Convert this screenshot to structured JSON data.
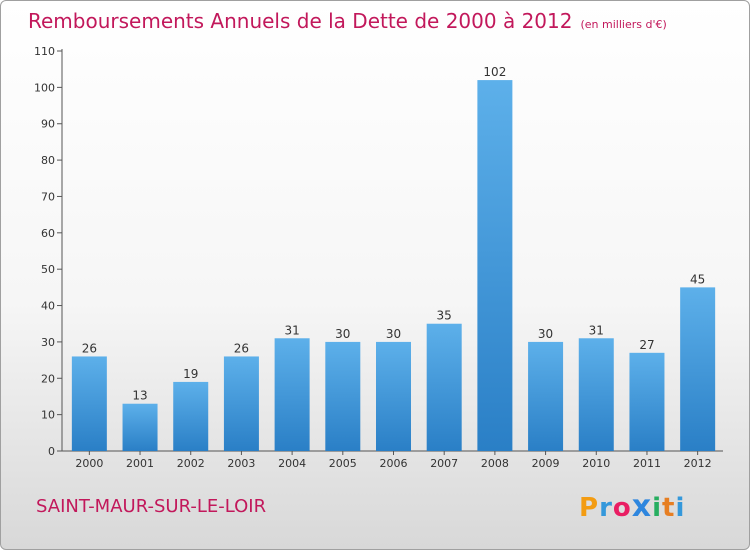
{
  "chart_data": {
    "type": "bar",
    "title": "Remboursements Annuels de la Dette de 2000 à 2012",
    "subtitle": "(en milliers d'€)",
    "categories": [
      "2000",
      "2001",
      "2002",
      "2003",
      "2004",
      "2005",
      "2006",
      "2007",
      "2008",
      "2009",
      "2010",
      "2011",
      "2012"
    ],
    "values": [
      26,
      13,
      19,
      26,
      31,
      30,
      30,
      35,
      102,
      30,
      31,
      27,
      45
    ],
    "yticks": [
      0,
      10,
      20,
      30,
      40,
      50,
      60,
      70,
      80,
      90,
      100,
      110
    ],
    "ylim": [
      0,
      110
    ],
    "grid": false,
    "bar_color": "#3a92d8"
  },
  "footer": {
    "city": "SAINT-MAUR-SUR-LE-LOIR",
    "logo_letters": [
      "P",
      "r",
      "o",
      "x",
      "i",
      "t",
      "i"
    ],
    "logo_colors": [
      "#f39c12",
      "#3498db",
      "#e91e63",
      "#2e86de",
      "#27ae60",
      "#e67e22",
      "#3498db"
    ]
  }
}
